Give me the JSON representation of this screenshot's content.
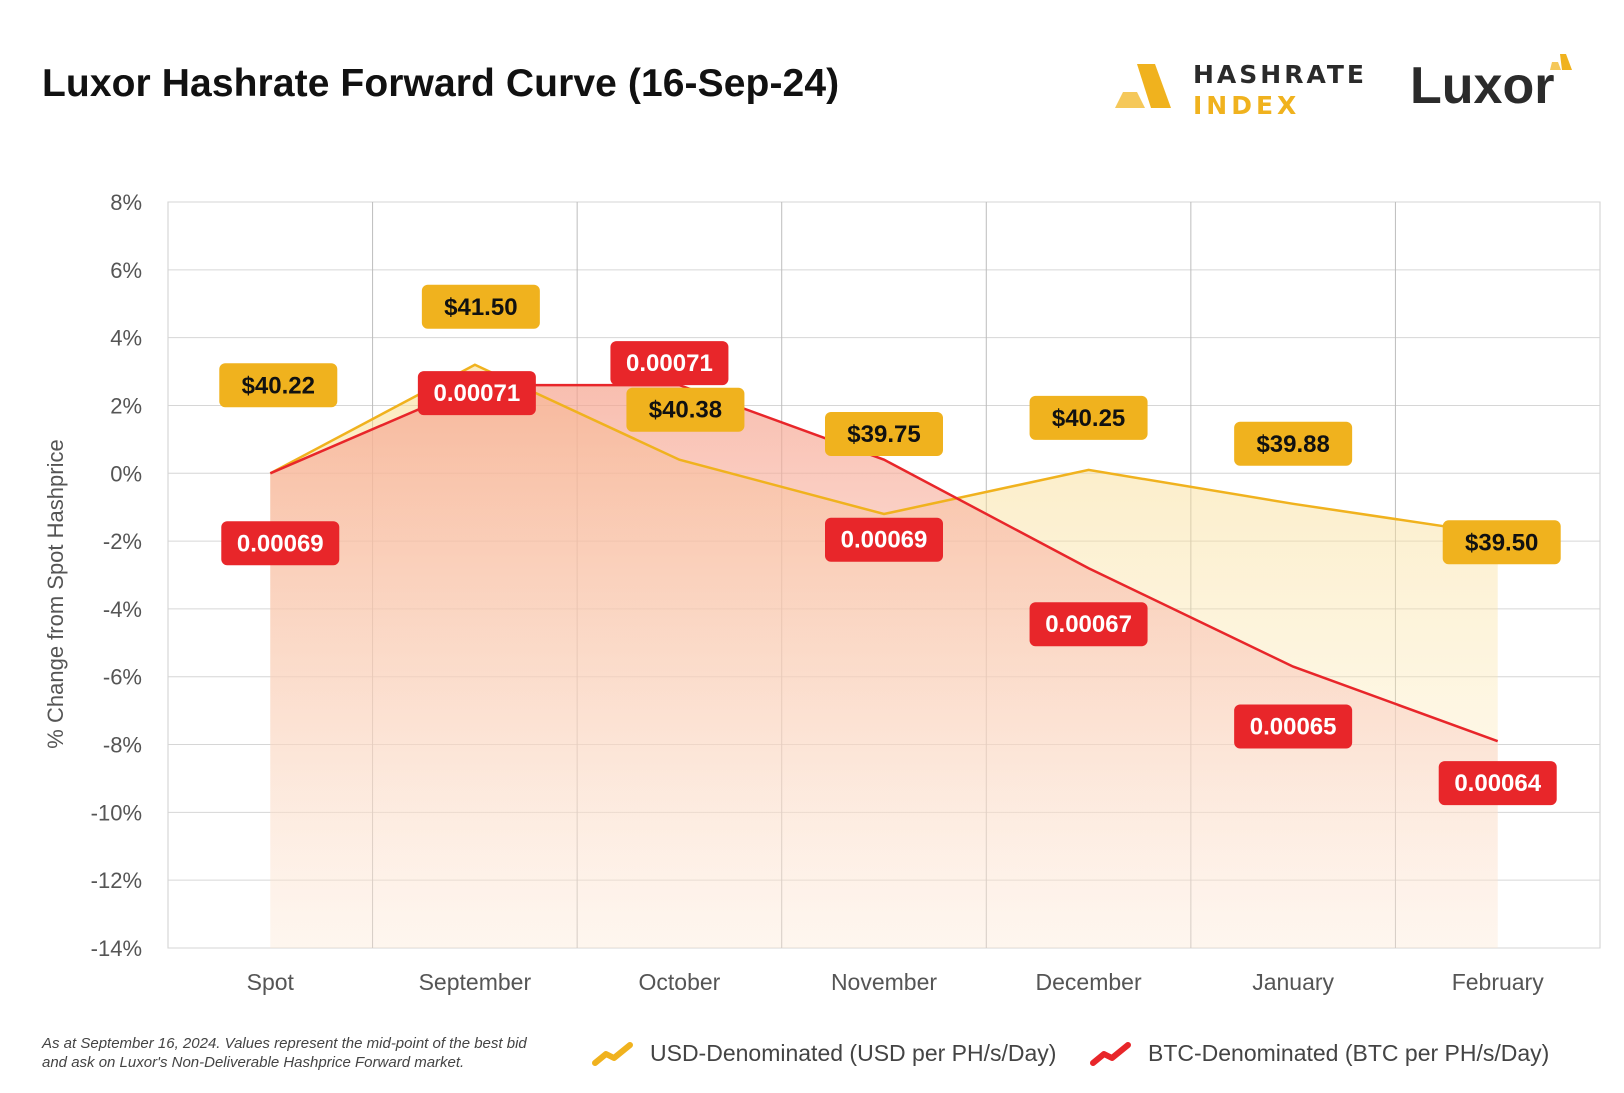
{
  "title": "Luxor Hashrate Forward Curve (16-Sep-24)",
  "brand": {
    "hashrate_word1": "HASHRATE",
    "hashrate_word2": "INDEX",
    "luxor": "Luxor"
  },
  "colors": {
    "usd": "#f0b21e",
    "btc": "#e8262a",
    "usd_fill": "#fbe8b4",
    "btc_fill": "#f8c4c4"
  },
  "footnote": "As at September 16, 2024. Values represent the mid-point of the best bid and ask on Luxor's Non-Deliverable Hashprice Forward market.",
  "legend": {
    "usd": "USD-Denominated (USD per PH/s/Day)",
    "btc": "BTC-Denominated (BTC per PH/s/Day)"
  },
  "chart_data": {
    "type": "area",
    "title": "Luxor Hashrate Forward Curve (16-Sep-24)",
    "xlabel": "",
    "ylabel": "% Change from Spot Hashprice",
    "ylim": [
      -14,
      8
    ],
    "yticks": [
      "8%",
      "6%",
      "4%",
      "2%",
      "0%",
      "-2%",
      "-4%",
      "-6%",
      "-8%",
      "-10%",
      "-12%",
      "-14%"
    ],
    "grid": true,
    "legend_position": "bottom",
    "categories": [
      "Spot",
      "September",
      "October",
      "November",
      "December",
      "January",
      "February"
    ],
    "series": [
      {
        "name": "USD-Denominated (USD per PH/s/Day)",
        "values": [
          0.0,
          3.2,
          0.4,
          -1.2,
          0.1,
          -0.9,
          -1.8
        ],
        "labels": [
          "$40.22",
          "$41.50",
          "$40.38",
          "$39.75",
          "$40.25",
          "$39.88",
          "$39.50"
        ]
      },
      {
        "name": "BTC-Denominated (BTC per PH/s/Day)",
        "values": [
          0.0,
          2.6,
          2.6,
          0.4,
          -2.8,
          -5.7,
          -7.9
        ],
        "labels": [
          "0.00069",
          "0.00071",
          "0.00071",
          "0.00069",
          "0.00067",
          "0.00065",
          "0.00064"
        ]
      }
    ]
  }
}
